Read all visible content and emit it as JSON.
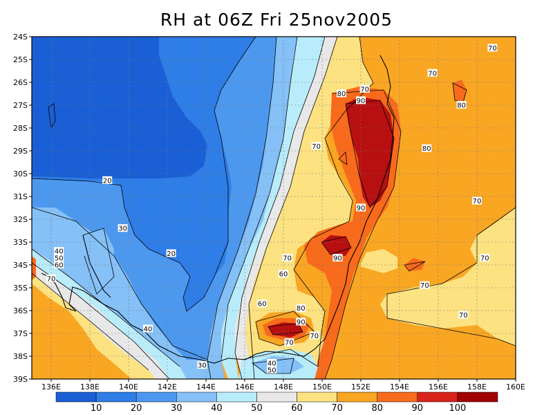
{
  "title": "RH at 06Z Fri 25nov2005",
  "map": {
    "lat_ticks": [
      "24S",
      "25S",
      "26S",
      "27S",
      "28S",
      "29S",
      "30S",
      "31S",
      "32S",
      "33S",
      "34S",
      "35S",
      "36S",
      "37S",
      "38S",
      "39S"
    ],
    "lon_ticks": [
      "136E",
      "138E",
      "140E",
      "142E",
      "144E",
      "146E",
      "148E",
      "150E",
      "152E",
      "154E",
      "156E",
      "158E",
      "160E"
    ],
    "lat_range": [
      -39,
      -24
    ],
    "lon_range": [
      135,
      160
    ],
    "gridlines": "dotted",
    "contour_labels": [
      {
        "text": "70",
        "lon": 158.8,
        "lat": -24.5
      },
      {
        "text": "70",
        "lon": 155.7,
        "lat": -25.6
      },
      {
        "text": "70",
        "lon": 152.2,
        "lat": -26.3
      },
      {
        "text": "80",
        "lon": 151.0,
        "lat": -26.5
      },
      {
        "text": "90",
        "lon": 152.0,
        "lat": -26.8
      },
      {
        "text": "80",
        "lon": 157.2,
        "lat": -27.0
      },
      {
        "text": "70",
        "lon": 149.7,
        "lat": -28.8
      },
      {
        "text": "80",
        "lon": 155.4,
        "lat": -28.9
      },
      {
        "text": "20",
        "lon": 138.9,
        "lat": -30.3
      },
      {
        "text": "70",
        "lon": 158.0,
        "lat": -31.2
      },
      {
        "text": "90",
        "lon": 152.0,
        "lat": -31.5
      },
      {
        "text": "30",
        "lon": 139.7,
        "lat": -32.4
      },
      {
        "text": "40",
        "lon": 136.4,
        "lat": -33.4
      },
      {
        "text": "20",
        "lon": 142.2,
        "lat": -33.5
      },
      {
        "text": "50",
        "lon": 136.4,
        "lat": -33.7
      },
      {
        "text": "60",
        "lon": 136.4,
        "lat": -34.0
      },
      {
        "text": "70",
        "lon": 148.2,
        "lat": -33.7
      },
      {
        "text": "90",
        "lon": 150.8,
        "lat": -33.7
      },
      {
        "text": "70",
        "lon": 158.4,
        "lat": -33.7
      },
      {
        "text": "70",
        "lon": 136.0,
        "lat": -34.6
      },
      {
        "text": "60",
        "lon": 148.0,
        "lat": -34.4
      },
      {
        "text": "70",
        "lon": 155.3,
        "lat": -34.9
      },
      {
        "text": "60",
        "lon": 146.9,
        "lat": -35.7
      },
      {
        "text": "80",
        "lon": 148.9,
        "lat": -35.9
      },
      {
        "text": "90",
        "lon": 148.9,
        "lat": -36.5
      },
      {
        "text": "70",
        "lon": 157.3,
        "lat": -36.2
      },
      {
        "text": "40",
        "lon": 141.0,
        "lat": -36.8
      },
      {
        "text": "70",
        "lon": 149.6,
        "lat": -37.1
      },
      {
        "text": "70",
        "lon": 148.3,
        "lat": -37.4
      },
      {
        "text": "30",
        "lon": 143.8,
        "lat": -38.4
      },
      {
        "text": "40",
        "lon": 147.4,
        "lat": -38.3
      },
      {
        "text": "50",
        "lon": 147.4,
        "lat": -38.6
      }
    ]
  },
  "colorbar": {
    "labels": [
      "10",
      "20",
      "30",
      "40",
      "50",
      "60",
      "70",
      "80",
      "90",
      "100"
    ],
    "colors": [
      "#1a5fd6",
      "#2f7de6",
      "#4d98ef",
      "#85c0f7",
      "#b8ecfb",
      "#e8e8e8",
      "#fde282",
      "#f9a623",
      "#f86a1c",
      "#d8231b",
      "#a10202"
    ]
  }
}
